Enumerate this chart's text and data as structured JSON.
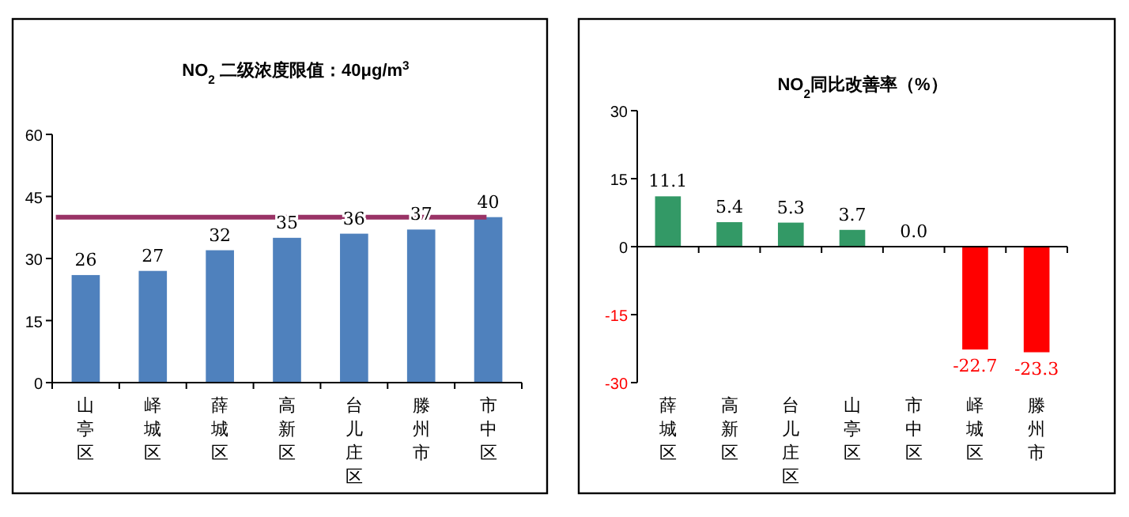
{
  "chart_data": [
    {
      "type": "bar",
      "title": "NO$_{2}$  二级浓度限值：40μg/m$^{3}$",
      "categories": [
        "山亭区",
        "峄城区",
        "薛城区",
        "高新区",
        "台儿庄区",
        "滕州市",
        "市中区"
      ],
      "series": [
        {
          "color": "#4f81bd",
          "values": [
            26,
            27,
            32,
            35,
            36,
            37,
            40
          ]
        }
      ],
      "ylim": [
        0,
        60
      ],
      "yticks": [
        0,
        15,
        30,
        45,
        60
      ],
      "data_labels": true,
      "ref_lines": [
        {
          "axis": "y",
          "value": 40,
          "color": "#993366"
        }
      ]
    },
    {
      "type": "bar",
      "title": "NO$_{2}$同比改善率（%）",
      "categories": [
        "薛城区",
        "高新区",
        "台儿庄区",
        "山亭区",
        "市中区",
        "峄城区",
        "滕州市"
      ],
      "series": [
        {
          "colors": [
            "#339966",
            "#339966",
            "#339966",
            "#339966",
            "#339966",
            "#ff0000",
            "#ff0000"
          ],
          "values": [
            11.1,
            5.4,
            5.3,
            3.7,
            0.0,
            -22.7,
            -23.3
          ],
          "value_labels": [
            "11.1",
            "5.4",
            "5.3",
            "3.7",
            "0.0",
            "-22.7",
            "-23.3"
          ]
        }
      ],
      "ylim": [
        -30,
        30
      ],
      "yticks": [
        -30,
        -15,
        0,
        15,
        30
      ]
    }
  ]
}
